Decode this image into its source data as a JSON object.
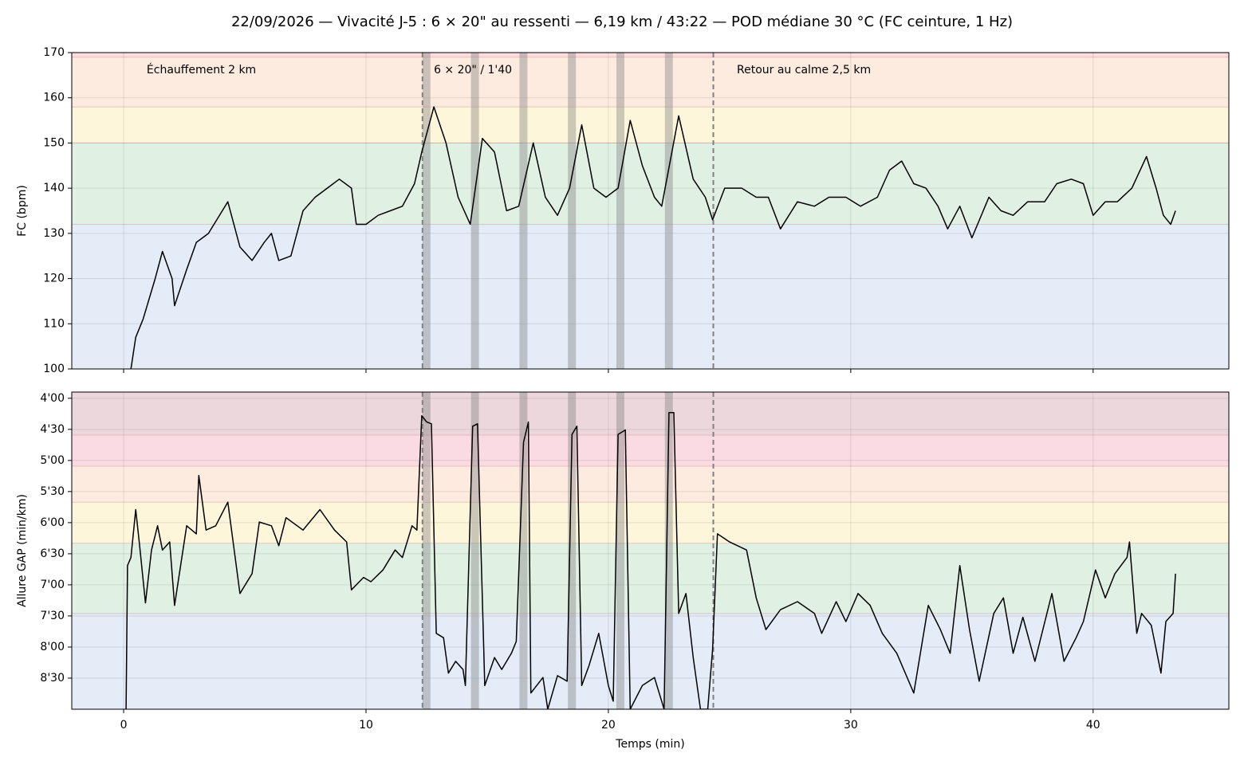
{
  "chart_data": [
    {
      "type": "line",
      "title": "22/09/2026 — Vivacité J-5 : 6 × 20\" au ressenti — 6,19 km / 43:22 — POD médiane 30 °C (FC ceinture, 1 Hz)",
      "ylabel": "FC (bpm)",
      "color": "#000000",
      "grid": true,
      "xlim": [
        -2.14,
        45.6
      ],
      "xticks": [
        0,
        10,
        20,
        30,
        40
      ],
      "ylim": [
        100,
        170
      ],
      "yticks": [
        100,
        110,
        120,
        130,
        140,
        150,
        160,
        170
      ],
      "zones": [
        {
          "from": 100,
          "to": 132,
          "color": "#e3ecf7"
        },
        {
          "from": 132,
          "to": 150,
          "color": "#e0f1e3"
        },
        {
          "from": 150,
          "to": 158,
          "color": "#fdf6da"
        },
        {
          "from": 158,
          "to": 169,
          "color": "#fdebdf"
        },
        {
          "from": 169,
          "to": 170,
          "color": "#fbdde0"
        }
      ],
      "reps": [
        [
          12.33,
          12.66
        ],
        [
          14.33,
          14.66
        ],
        [
          16.33,
          16.66
        ],
        [
          18.33,
          18.66
        ],
        [
          20.33,
          20.66
        ],
        [
          22.33,
          22.66
        ]
      ],
      "markers": [
        12.33,
        24.33
      ],
      "annotations": [
        "Échauffement 2 km",
        "6 × 20\" / 1'40",
        "Retour au calme 2,5 km"
      ],
      "x": [
        0.3,
        0.5,
        0.8,
        1.3,
        1.6,
        2.0,
        2.1,
        2.6,
        3.0,
        3.5,
        4.3,
        4.8,
        5.3,
        5.8,
        6.1,
        6.4,
        6.9,
        7.4,
        7.9,
        8.4,
        8.9,
        9.4,
        9.6,
        10.0,
        10.5,
        11.0,
        11.5,
        12.0,
        12.3,
        12.8,
        13.3,
        13.8,
        14.3,
        14.8,
        15.3,
        15.8,
        16.3,
        16.9,
        17.4,
        17.9,
        18.4,
        18.9,
        19.4,
        19.9,
        20.4,
        20.9,
        21.4,
        21.9,
        22.2,
        22.9,
        23.5,
        24.0,
        24.3,
        24.8,
        25.5,
        26.1,
        26.6,
        27.1,
        27.8,
        28.5,
        29.1,
        29.8,
        30.4,
        31.1,
        31.6,
        32.1,
        32.6,
        33.1,
        33.6,
        34.0,
        34.5,
        35.0,
        35.7,
        36.2,
        36.7,
        37.3,
        38.0,
        38.5,
        39.1,
        39.6,
        40.0,
        40.5,
        41.0,
        41.6,
        42.2,
        42.6,
        42.9,
        43.2,
        43.4
      ],
      "values": [
        100,
        107,
        111,
        120,
        126,
        120,
        114,
        122,
        128,
        130,
        137,
        127,
        124,
        128,
        130,
        124,
        125,
        135,
        138,
        140,
        142,
        140,
        132,
        132,
        134,
        135,
        136,
        141,
        148,
        158,
        150,
        138,
        132,
        151,
        148,
        135,
        136,
        150,
        138,
        134,
        140,
        154,
        140,
        138,
        140,
        155,
        145,
        138,
        136,
        156,
        142,
        138,
        133,
        140,
        140,
        138,
        138,
        131,
        137,
        136,
        138,
        138,
        136,
        138,
        144,
        146,
        141,
        140,
        136,
        131,
        136,
        129,
        138,
        135,
        134,
        137,
        137,
        141,
        142,
        141,
        134,
        137,
        137,
        140,
        147,
        140,
        134,
        132,
        135
      ]
    },
    {
      "type": "line",
      "ylabel": "Allure GAP (min/km)",
      "xlabel": "Temps (min)",
      "color": "#000000",
      "grid": true,
      "inverted": true,
      "xlim": [
        -2.14,
        45.6
      ],
      "xticks": [
        0,
        10,
        20,
        30,
        40
      ],
      "ylim": [
        3.9,
        9.0
      ],
      "yticks": [
        {
          "value": 4.0,
          "label": "4'00"
        },
        {
          "value": 4.5,
          "label": "4'30"
        },
        {
          "value": 5.0,
          "label": "5'00"
        },
        {
          "value": 5.5,
          "label": "5'30"
        },
        {
          "value": 6.0,
          "label": "6'00"
        },
        {
          "value": 6.5,
          "label": "6'30"
        },
        {
          "value": 7.0,
          "label": "7'00"
        },
        {
          "value": 7.5,
          "label": "7'30"
        },
        {
          "value": 8.0,
          "label": "8'00"
        },
        {
          "value": 8.5,
          "label": "8'30"
        }
      ],
      "zones": [
        {
          "from": 9.0,
          "to": 7.46,
          "color": "#e3ecf7"
        },
        {
          "from": 7.46,
          "to": 6.33,
          "color": "#e0f1e3"
        },
        {
          "from": 6.33,
          "to": 5.67,
          "color": "#fdf6da"
        },
        {
          "from": 5.67,
          "to": 5.09,
          "color": "#fdebdf"
        },
        {
          "from": 5.09,
          "to": 4.59,
          "color": "#fbdbe3"
        },
        {
          "from": 4.59,
          "to": 3.9,
          "color": "#ecd8dc"
        }
      ],
      "reps": [
        [
          12.33,
          12.66
        ],
        [
          14.33,
          14.66
        ],
        [
          16.33,
          16.66
        ],
        [
          18.33,
          18.66
        ],
        [
          20.33,
          20.66
        ],
        [
          22.33,
          22.66
        ]
      ],
      "markers": [
        12.33,
        24.33
      ],
      "x": [
        0.1,
        0.16,
        0.3,
        0.5,
        0.66,
        0.9,
        1.15,
        1.4,
        1.6,
        1.9,
        2.1,
        2.6,
        3.0,
        3.1,
        3.4,
        3.8,
        4.3,
        4.8,
        5.3,
        5.6,
        6.1,
        6.4,
        6.7,
        7.4,
        8.1,
        8.7,
        9.2,
        9.4,
        9.9,
        10.2,
        10.7,
        11.2,
        11.5,
        11.9,
        12.1,
        12.3,
        12.5,
        12.7,
        12.9,
        13.2,
        13.4,
        13.7,
        14.0,
        14.1,
        14.4,
        14.6,
        14.9,
        15.3,
        15.6,
        16.0,
        16.2,
        16.5,
        16.7,
        16.8,
        17.3,
        17.5,
        17.9,
        18.3,
        18.5,
        18.7,
        18.9,
        19.2,
        19.6,
        20.0,
        20.2,
        20.4,
        20.7,
        20.9,
        21.4,
        21.9,
        22.3,
        22.5,
        22.7,
        22.9,
        23.2,
        23.5,
        23.8,
        24.1,
        24.3,
        24.5,
        25.0,
        25.7,
        26.1,
        26.5,
        27.1,
        27.8,
        28.5,
        28.8,
        29.4,
        29.8,
        30.3,
        30.8,
        31.3,
        31.9,
        32.6,
        33.2,
        33.7,
        34.1,
        34.5,
        34.9,
        35.3,
        35.9,
        36.3,
        36.7,
        37.1,
        37.6,
        38.3,
        38.8,
        39.3,
        39.6,
        40.1,
        40.5,
        40.9,
        41.4,
        41.5,
        41.8,
        42.0,
        42.4,
        42.8,
        43.0,
        43.3,
        43.4
      ],
      "values": [
        9.0,
        6.69,
        6.56,
        5.79,
        6.37,
        7.29,
        6.44,
        6.05,
        6.44,
        6.31,
        7.33,
        6.05,
        6.18,
        5.24,
        6.12,
        6.05,
        5.67,
        7.14,
        6.82,
        5.99,
        6.05,
        6.37,
        5.92,
        6.12,
        5.79,
        6.12,
        6.31,
        7.08,
        6.88,
        6.95,
        6.76,
        6.44,
        6.56,
        6.05,
        6.12,
        4.28,
        4.38,
        4.41,
        7.78,
        7.85,
        8.42,
        8.23,
        8.36,
        8.62,
        4.45,
        4.41,
        8.62,
        8.17,
        8.36,
        8.1,
        7.91,
        4.71,
        4.38,
        8.74,
        8.49,
        9.0,
        8.46,
        8.55,
        4.58,
        4.45,
        8.62,
        8.3,
        7.78,
        8.62,
        8.87,
        4.58,
        4.51,
        9.0,
        8.62,
        8.49,
        9.0,
        4.23,
        4.23,
        7.46,
        7.14,
        8.17,
        9.0,
        9.0,
        8.04,
        6.18,
        6.31,
        6.44,
        7.21,
        7.72,
        7.4,
        7.27,
        7.46,
        7.78,
        7.27,
        7.59,
        7.14,
        7.33,
        7.78,
        8.1,
        8.74,
        7.33,
        7.72,
        8.1,
        6.69,
        7.72,
        8.55,
        7.46,
        7.21,
        8.1,
        7.52,
        8.23,
        7.14,
        8.23,
        7.85,
        7.59,
        6.76,
        7.21,
        6.82,
        6.56,
        6.31,
        7.78,
        7.46,
        7.65,
        8.42,
        7.59,
        7.46,
        6.82
      ]
    }
  ]
}
